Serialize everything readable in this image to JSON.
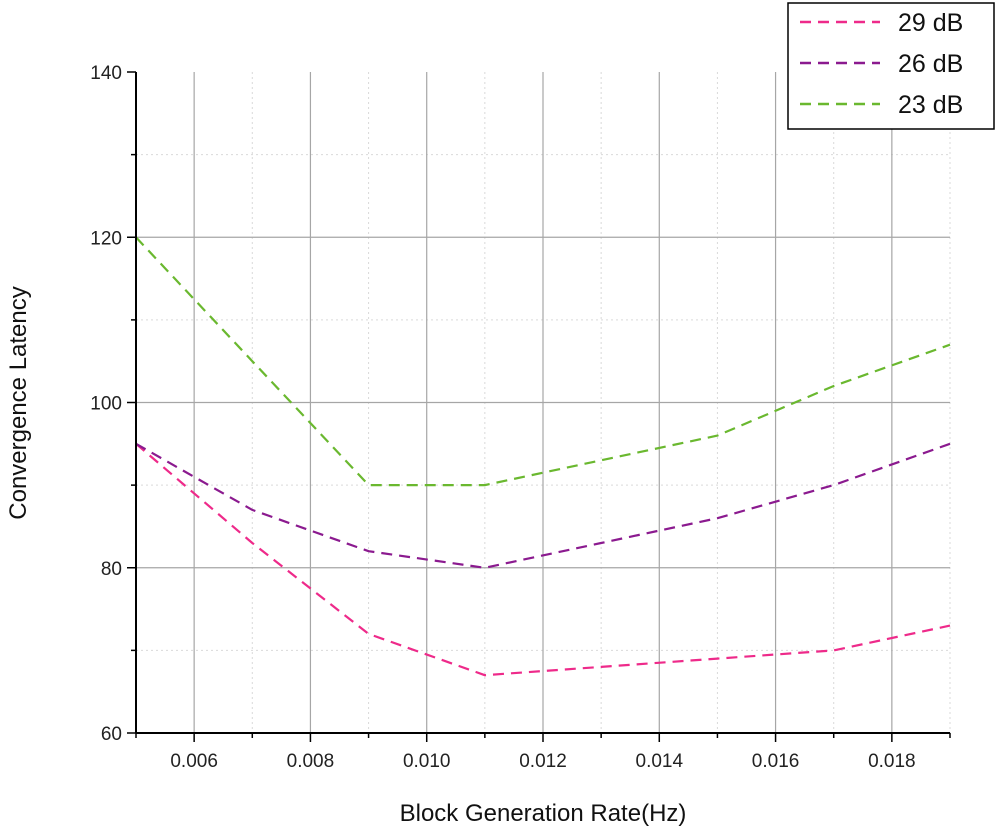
{
  "chart_data": {
    "type": "line",
    "xlabel": "Block Generation Rate(Hz)",
    "ylabel": "Convergence Latency",
    "xlim": [
      0.005,
      0.019
    ],
    "ylim": [
      60,
      140
    ],
    "x_ticks": [
      "0.006",
      "0.008",
      "0.010",
      "0.012",
      "0.014",
      "0.016",
      "0.018"
    ],
    "y_ticks": [
      "60",
      "80",
      "100",
      "120",
      "140"
    ],
    "grid": true,
    "legend_position": "top-right",
    "x": [
      0.005,
      0.007,
      0.009,
      0.011,
      0.013,
      0.015,
      0.017,
      0.019
    ],
    "series": [
      {
        "name": "29 dB",
        "color": "#ee2a8a",
        "values": [
          95,
          83,
          72,
          67,
          68,
          69,
          70,
          73
        ]
      },
      {
        "name": "26 dB",
        "color": "#8b1a8f",
        "values": [
          95,
          87,
          82,
          80,
          83,
          86,
          90,
          95
        ]
      },
      {
        "name": "23 dB",
        "color": "#6ab82f",
        "values": [
          120,
          105,
          90,
          90,
          93,
          96,
          102,
          107
        ]
      }
    ]
  }
}
